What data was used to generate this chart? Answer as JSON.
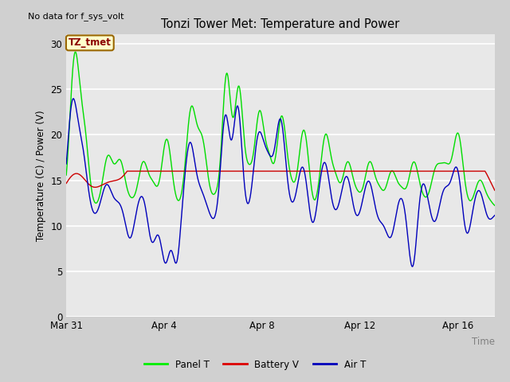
{
  "title": "Tonzi Tower Met: Temperature and Power",
  "xlabel": "Time",
  "ylabel": "Temperature (C) / Power (V)",
  "top_left_text": "No data for f_sys_volt",
  "legend_label_text": "TZ_tmet",
  "legend_entries": [
    "Panel T",
    "Battery V",
    "Air T"
  ],
  "legend_colors": [
    "#00ee00",
    "#dd0000",
    "#0000bb"
  ],
  "ylim": [
    0,
    31
  ],
  "yticks": [
    0,
    5,
    10,
    15,
    20,
    25,
    30
  ],
  "plot_bg_color": "#e8e8e8",
  "fig_bg_color": "#d0d0d0",
  "panel_t_color": "#00dd00",
  "battery_v_color": "#cc0000",
  "air_t_color": "#0000bb",
  "start_day": 0,
  "end_day": 17.5,
  "x_tick_labels": [
    "Mar 31",
    "Apr 4",
    "Apr 8",
    "Apr 12",
    "Apr 16"
  ],
  "x_tick_positions": [
    0,
    4,
    8,
    12,
    16
  ]
}
